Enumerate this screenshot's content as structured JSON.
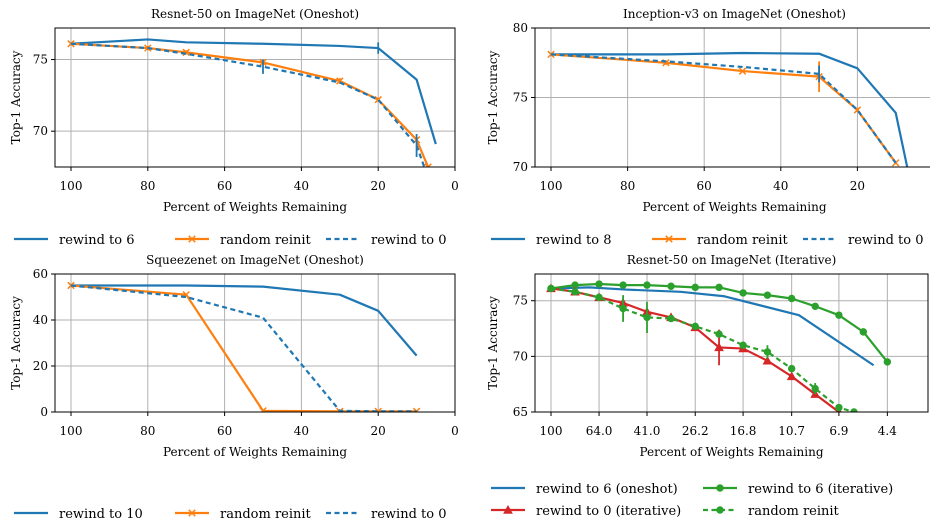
{
  "colors": {
    "blue": "#1f77b4",
    "orange": "#ff7f0e",
    "green": "#2ca02c",
    "red": "#d62728"
  },
  "chart_data": [
    {
      "type": "line",
      "title": "Resnet-50 on ImageNet (Oneshot)",
      "xlabel": "Percent of Weights Remaining",
      "ylabel": "Top-1 Accuracy",
      "xlim": [
        100,
        0
      ],
      "ylim": [
        67.5,
        77.2
      ],
      "xticks": [
        100,
        80,
        60,
        40,
        20,
        0
      ],
      "xtick_labels": [
        "100",
        "80",
        "60",
        "40",
        "20",
        "0"
      ],
      "yticks": [
        70,
        75
      ],
      "ytick_labels": [
        "70",
        "75"
      ],
      "grid": true,
      "legend_position": "below",
      "series": [
        {
          "name": "rewind to 6",
          "color": "blue",
          "style": "solid",
          "marker": "none",
          "x": [
            100,
            80,
            70,
            50,
            30,
            20,
            10,
            5
          ],
          "y": [
            76.1,
            76.4,
            76.2,
            76.1,
            75.95,
            75.8,
            73.6,
            69.1
          ],
          "errors": [
            0,
            0,
            0,
            0,
            0,
            0.4,
            0,
            0
          ]
        },
        {
          "name": "random reinit",
          "color": "orange",
          "style": "solid",
          "marker": "x",
          "x": [
            100,
            80,
            70,
            50,
            30,
            20,
            10,
            7
          ],
          "y": [
            76.1,
            75.8,
            75.5,
            74.8,
            73.5,
            72.2,
            69.4,
            67.5
          ],
          "errors": [
            0,
            0.15,
            0.15,
            0.15,
            0.2,
            0.15,
            0.2,
            0
          ]
        },
        {
          "name": "rewind to 0",
          "color": "blue",
          "style": "dashed",
          "marker": "none",
          "x": [
            100,
            80,
            70,
            50,
            30,
            20,
            10,
            8
          ],
          "y": [
            76.1,
            75.8,
            75.4,
            74.5,
            73.4,
            72.2,
            69.0,
            67.5
          ],
          "errors": [
            0,
            0,
            0,
            0.5,
            0,
            0,
            0.8,
            0
          ]
        }
      ]
    },
    {
      "type": "line",
      "title": "Inception-v3 on ImageNet (Oneshot)",
      "xlabel": "Percent of Weights Remaining",
      "ylabel": "Top-1 Accuracy",
      "xlim": [
        100,
        0
      ],
      "ylim": [
        70,
        80
      ],
      "xticks": [
        100,
        80,
        60,
        40,
        20,
        0
      ],
      "xtick_labels": [
        "100",
        "80",
        "60",
        "40",
        "20",
        "0"
      ],
      "yticks": [
        70,
        75,
        80
      ],
      "ytick_labels": [
        "70",
        "75",
        "80"
      ],
      "grid": true,
      "legend_position": "below",
      "series": [
        {
          "name": "rewind to 8",
          "color": "blue",
          "style": "solid",
          "marker": "none",
          "x": [
            100,
            70,
            50,
            30,
            20,
            10,
            7
          ],
          "y": [
            78.1,
            78.1,
            78.2,
            78.15,
            77.1,
            73.9,
            70
          ],
          "errors": [
            0,
            0,
            0,
            0,
            0,
            0,
            0
          ]
        },
        {
          "name": "random reinit",
          "color": "orange",
          "style": "solid",
          "marker": "x",
          "x": [
            100,
            70,
            50,
            30,
            20,
            10
          ],
          "y": [
            78.1,
            77.5,
            76.9,
            76.5,
            74.1,
            70.3
          ],
          "errors": [
            0,
            0.15,
            0,
            1.1,
            0.15,
            0
          ]
        },
        {
          "name": "rewind to 0",
          "color": "blue",
          "style": "dashed",
          "marker": "none",
          "x": [
            100,
            70,
            50,
            30,
            20,
            10
          ],
          "y": [
            78.1,
            77.6,
            77.2,
            76.7,
            74.1,
            70.3
          ],
          "errors": [
            0,
            0,
            0,
            0.6,
            0,
            0
          ]
        }
      ]
    },
    {
      "type": "line",
      "title": "Squeezenet on ImageNet (Oneshot)",
      "xlabel": "Percent of Weights Remaining",
      "ylabel": "Top-1 Accuracy",
      "xlim": [
        100,
        0
      ],
      "ylim": [
        0,
        60
      ],
      "xticks": [
        100,
        80,
        60,
        40,
        20,
        0
      ],
      "xtick_labels": [
        "100",
        "80",
        "60",
        "40",
        "20",
        "0"
      ],
      "yticks": [
        0,
        20,
        40,
        60
      ],
      "ytick_labels": [
        "0",
        "20",
        "40",
        "60"
      ],
      "grid": true,
      "legend_position": "below",
      "series": [
        {
          "name": "rewind to 10",
          "color": "blue",
          "style": "solid",
          "marker": "none",
          "x": [
            100,
            70,
            50,
            30,
            20,
            10
          ],
          "y": [
            55,
            55,
            54.5,
            51,
            44,
            24.5
          ],
          "errors": [
            0,
            0,
            0,
            0,
            0,
            0
          ]
        },
        {
          "name": "random reinit",
          "color": "orange",
          "style": "solid",
          "marker": "x",
          "x": [
            100,
            70,
            50,
            30,
            20,
            10
          ],
          "y": [
            55,
            51,
            0.5,
            0.3,
            0.3,
            0.3
          ],
          "errors": [
            0,
            0,
            0,
            0,
            0,
            0
          ]
        },
        {
          "name": "rewind to 0",
          "color": "blue",
          "style": "dashed",
          "marker": "none",
          "x": [
            100,
            70,
            50,
            30,
            20,
            10
          ],
          "y": [
            55,
            50,
            41,
            0.5,
            0.3,
            0.3
          ],
          "errors": [
            0,
            0,
            0,
            0,
            0,
            0
          ]
        }
      ]
    },
    {
      "type": "line",
      "title": "Resnet-50 on ImageNet (Iterative)",
      "xlabel": "Percent of Weights Remaining",
      "ylabel": "Top-1 Accuracy",
      "xscale": "log",
      "xlim": [
        100,
        3.5
      ],
      "ylim": [
        65,
        77.4
      ],
      "xticks": [
        100,
        64.0,
        41.0,
        26.2,
        16.8,
        10.7,
        6.9,
        4.4
      ],
      "xtick_labels": [
        "100",
        "64.0",
        "41.0",
        "26.2",
        "16.8",
        "10.7",
        "6.9",
        "4.4"
      ],
      "yticks": [
        65,
        70,
        75
      ],
      "ytick_labels": [
        "65",
        "70",
        "75"
      ],
      "grid": true,
      "legend_position": "below",
      "series": [
        {
          "name": "rewind to 6 (oneshot)",
          "color": "blue",
          "style": "solid",
          "marker": "none",
          "x": [
            100,
            70,
            50,
            30,
            20,
            10,
            5
          ],
          "y": [
            76.1,
            76.2,
            76.0,
            75.8,
            75.4,
            73.7,
            69.2
          ],
          "errors": [
            0,
            0,
            0,
            0,
            0,
            0,
            0
          ]
        },
        {
          "name": "rewind to 6 (iterative)",
          "color": "green",
          "style": "solid",
          "marker": "o",
          "x": [
            100,
            80,
            64,
            51.2,
            41,
            32.8,
            26.2,
            21,
            16.8,
            13.4,
            10.7,
            8.6,
            6.9,
            5.5,
            4.4
          ],
          "y": [
            76.1,
            76.4,
            76.5,
            76.4,
            76.4,
            76.3,
            76.2,
            76.2,
            75.7,
            75.5,
            75.2,
            74.5,
            73.7,
            72.2,
            69.5
          ],
          "errors": [
            0,
            0,
            0,
            0,
            0,
            0,
            0,
            0,
            0,
            0,
            0,
            0,
            0,
            0.3,
            0
          ]
        },
        {
          "name": "rewind to 0 (iterative)",
          "color": "red",
          "style": "solid",
          "marker": "^",
          "x": [
            100,
            80,
            64,
            51.2,
            41,
            32.8,
            26.2,
            21,
            16.8,
            13.4,
            10.7,
            8.6,
            6.9
          ],
          "y": [
            76.1,
            75.8,
            75.3,
            74.8,
            74.0,
            73.5,
            72.6,
            70.8,
            70.7,
            69.6,
            68.2,
            66.6,
            65.0
          ],
          "errors": [
            0,
            0,
            0,
            0,
            0,
            0,
            0,
            1.6,
            0,
            0,
            0,
            0,
            0
          ]
        },
        {
          "name": "random reinit",
          "color": "green",
          "style": "dashed",
          "marker": "o",
          "x": [
            100,
            80,
            64,
            51.2,
            41,
            32.8,
            26.2,
            21,
            16.8,
            13.4,
            10.7,
            8.6,
            6.9,
            6.0
          ],
          "y": [
            76.1,
            75.8,
            75.3,
            74.3,
            73.5,
            73.4,
            72.7,
            72.0,
            71.0,
            70.4,
            68.9,
            67.1,
            65.4,
            65.0
          ],
          "errors": [
            0,
            0,
            0,
            1.2,
            1.4,
            0,
            0,
            0,
            0,
            0.6,
            0,
            0.5,
            0,
            0
          ]
        }
      ]
    }
  ]
}
